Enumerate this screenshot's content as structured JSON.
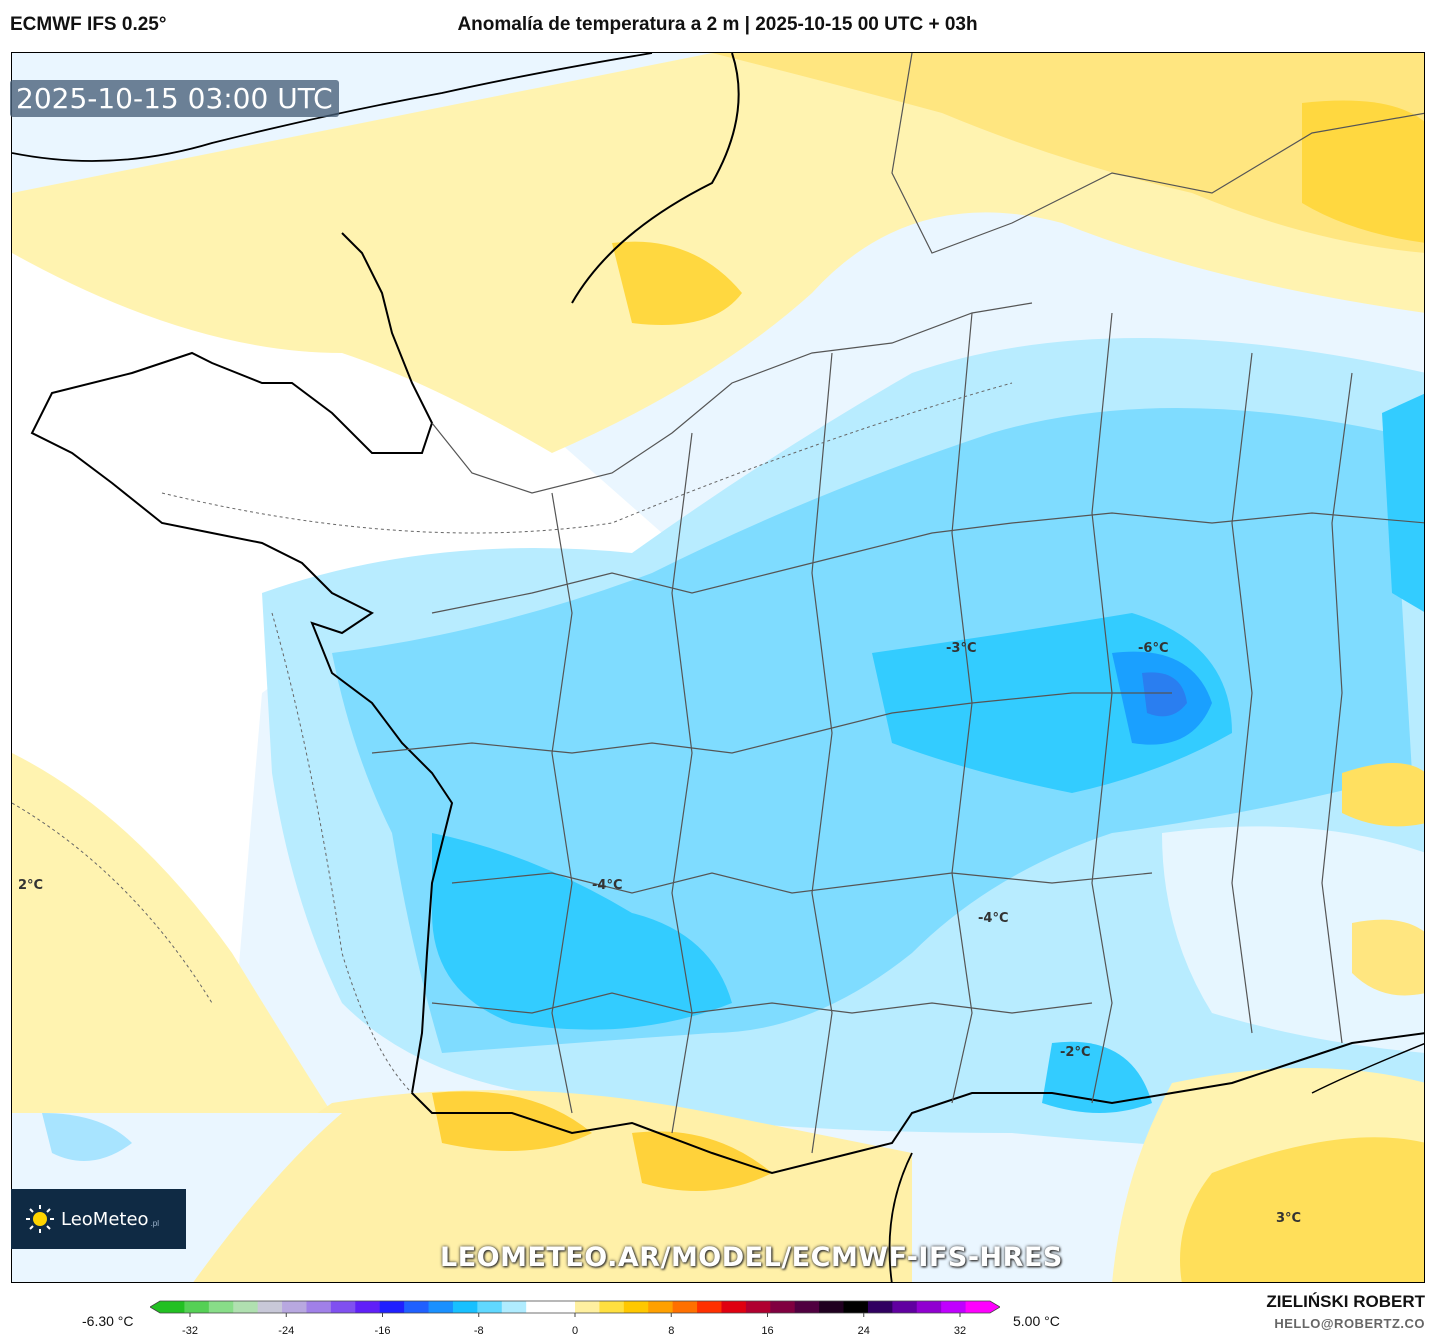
{
  "header": {
    "model": "ECMWF IFS 0.25°",
    "title": "Anomalía de temperatura a 2 m | 2025-10-15 00 UTC + 03h"
  },
  "map": {
    "timestamp": "2025-10-15 03:00 UTC",
    "contour_labels": [
      "2°C",
      "-3°C",
      "-6°C",
      "-4°C",
      "-4°C",
      "-2°C",
      "3°C"
    ],
    "url": "LEOMETEO.AR/MODEL/ECMWF-IFS-HRES"
  },
  "logo": {
    "name": "LeoMeteo",
    "suffix": ".pl"
  },
  "colorbar": {
    "min_label": "-6.30 °C",
    "max_label": "5.00 °C",
    "ticks": [
      "-32",
      "-24",
      "-16",
      "-8",
      "0",
      "8",
      "16",
      "24",
      "32"
    ],
    "colors": [
      "#22c022",
      "#55d055",
      "#88dd88",
      "#b0e0b0",
      "#c8c8d8",
      "#b8a8e0",
      "#a080e8",
      "#8050f0",
      "#6020f8",
      "#2020ff",
      "#2060ff",
      "#1a90ff",
      "#18c0ff",
      "#60d8ff",
      "#b0ecff",
      "#ffffff",
      "#ffffff",
      "#fff0a0",
      "#ffe040",
      "#ffc800",
      "#ffa000",
      "#ff7000",
      "#ff3000",
      "#e00010",
      "#b00030",
      "#800040",
      "#500040",
      "#200020",
      "#000000",
      "#300060",
      "#6000a0",
      "#9000d0",
      "#c000ff",
      "#ff00ff"
    ]
  },
  "footer": {
    "author": "ZIELIŃSKI ROBERT",
    "email": "HELLO@ROBERTZ.CO"
  }
}
